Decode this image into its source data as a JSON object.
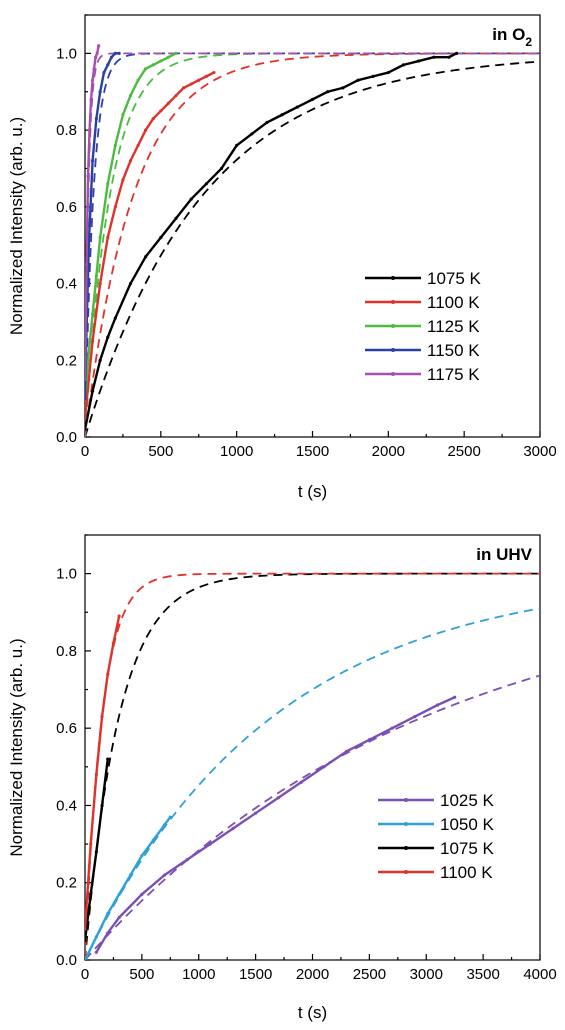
{
  "chart_data": [
    {
      "type": "line",
      "annotation": "in O",
      "annotation_subscript": "2",
      "xlabel": "t (s)",
      "ylabel": "Normalized Intensity (arb. u.)",
      "xlim": [
        0,
        3000
      ],
      "ylim": [
        0,
        1.1
      ],
      "x_ticks": [
        0,
        500,
        1000,
        1500,
        2000,
        2500,
        3000
      ],
      "y_ticks": [
        0.0,
        0.2,
        0.4,
        0.6,
        0.8,
        1.0
      ],
      "x_tick_labels": [
        "0",
        "500",
        "1000",
        "1500",
        "2000",
        "2500",
        "3000"
      ],
      "y_tick_labels": [
        "0.0",
        "0.2",
        "0.4",
        "0.6",
        "0.8",
        "1.0"
      ],
      "legend_position": "bottom-right",
      "series": [
        {
          "name": "1075 K",
          "color": "#000000",
          "x": [
            0,
            50,
            100,
            150,
            200,
            300,
            400,
            500,
            600,
            700,
            800,
            900,
            1000,
            1100,
            1200,
            1300,
            1400,
            1500,
            1600,
            1700,
            1800,
            1900,
            2000,
            2100,
            2200,
            2300,
            2400,
            2450
          ],
          "y": [
            0.02,
            0.12,
            0.2,
            0.26,
            0.31,
            0.4,
            0.47,
            0.52,
            0.57,
            0.62,
            0.66,
            0.7,
            0.76,
            0.79,
            0.82,
            0.84,
            0.86,
            0.88,
            0.9,
            0.91,
            0.93,
            0.94,
            0.95,
            0.97,
            0.98,
            0.99,
            0.99,
            1.0
          ]
        },
        {
          "name": "1100 K",
          "color": "#e0312b",
          "x": [
            0,
            25,
            50,
            100,
            150,
            200,
            250,
            300,
            350,
            400,
            450,
            500,
            550,
            600,
            650,
            700,
            750,
            800,
            850
          ],
          "y": [
            0.05,
            0.15,
            0.25,
            0.4,
            0.52,
            0.6,
            0.67,
            0.72,
            0.76,
            0.8,
            0.83,
            0.85,
            0.87,
            0.89,
            0.91,
            0.92,
            0.93,
            0.94,
            0.95
          ]
        },
        {
          "name": "1125 K",
          "color": "#4cbb3f",
          "x": [
            0,
            25,
            50,
            75,
            100,
            150,
            200,
            250,
            300,
            350,
            400,
            450,
            500,
            550,
            600
          ],
          "y": [
            0.1,
            0.22,
            0.32,
            0.42,
            0.52,
            0.66,
            0.76,
            0.84,
            0.89,
            0.93,
            0.96,
            0.97,
            0.98,
            0.99,
            1.0
          ]
        },
        {
          "name": "1150 K",
          "color": "#2a3fa8",
          "x": [
            0,
            10,
            25,
            50,
            75,
            100,
            125,
            150,
            175,
            200,
            225
          ],
          "y": [
            0.1,
            0.28,
            0.5,
            0.72,
            0.83,
            0.9,
            0.95,
            0.97,
            0.99,
            1.0,
            1.0
          ]
        },
        {
          "name": "1175 K",
          "color": "#a64fb0",
          "x": [
            0,
            10,
            20,
            30,
            40,
            50,
            60,
            70,
            80,
            90
          ],
          "y": [
            0.15,
            0.45,
            0.68,
            0.8,
            0.88,
            0.93,
            0.96,
            0.99,
            1.0,
            1.02
          ]
        }
      ],
      "fits": [
        {
          "color": "#000000",
          "tau": 780,
          "t0": 0
        },
        {
          "color": "#e0312b",
          "tau": 320,
          "t0": 0
        },
        {
          "color": "#4cbb3f",
          "tau": 165,
          "t0": 0
        },
        {
          "color": "#2a3fa8",
          "tau": 55,
          "t0": 0
        },
        {
          "color": "#a64fb0",
          "tau": 22,
          "t0": 0
        }
      ]
    },
    {
      "type": "line",
      "annotation": "in UHV",
      "annotation_subscript": "",
      "xlabel": "t (s)",
      "ylabel": "Normalized Intensity (arb. u.)",
      "xlim": [
        0,
        4000
      ],
      "ylim": [
        0,
        1.1
      ],
      "x_ticks": [
        0,
        500,
        1000,
        1500,
        2000,
        2500,
        3000,
        3500,
        4000
      ],
      "y_ticks": [
        0.0,
        0.2,
        0.4,
        0.6,
        0.8,
        1.0
      ],
      "x_tick_labels": [
        "0",
        "500",
        "1000",
        "1500",
        "2000",
        "2500",
        "3000",
        "3500",
        "4000"
      ],
      "y_tick_labels": [
        "0.0",
        "0.2",
        "0.4",
        "0.6",
        "0.8",
        "1.0"
      ],
      "legend_position": "bottom-right",
      "series": [
        {
          "name": "1025 K",
          "color": "#7b4fb4",
          "x": [
            100,
            200,
            300,
            500,
            700,
            900,
            1100,
            1300,
            1500,
            1700,
            1900,
            2100,
            2300,
            2500,
            2700,
            2900,
            3100,
            3250
          ],
          "y": [
            0.02,
            0.07,
            0.11,
            0.17,
            0.22,
            0.26,
            0.3,
            0.34,
            0.38,
            0.42,
            0.46,
            0.5,
            0.54,
            0.57,
            0.6,
            0.63,
            0.66,
            0.68
          ]
        },
        {
          "name": "1050 K",
          "color": "#2fa1d6",
          "x": [
            0,
            100,
            200,
            300,
            400,
            500,
            600,
            700,
            750
          ],
          "y": [
            0.0,
            0.06,
            0.12,
            0.17,
            0.22,
            0.27,
            0.31,
            0.35,
            0.37
          ]
        },
        {
          "name": "1075 K",
          "color": "#000000",
          "x": [
            0,
            50,
            100,
            150,
            200
          ],
          "y": [
            0.05,
            0.17,
            0.28,
            0.4,
            0.52
          ]
        },
        {
          "name": "1100 K",
          "color": "#e0312b",
          "x": [
            0,
            50,
            100,
            150,
            200,
            250,
            300
          ],
          "y": [
            0.08,
            0.3,
            0.48,
            0.63,
            0.74,
            0.82,
            0.89
          ]
        }
      ],
      "fits": [
        {
          "color": "#7b4fb4",
          "tau": 3000,
          "t0": 0
        },
        {
          "color": "#2fa1d6",
          "tau": 1660,
          "t0": 0
        },
        {
          "color": "#000000",
          "tau": 300,
          "t0": 0
        },
        {
          "color": "#e0312b",
          "tau": 150,
          "t0": 0
        }
      ]
    }
  ]
}
